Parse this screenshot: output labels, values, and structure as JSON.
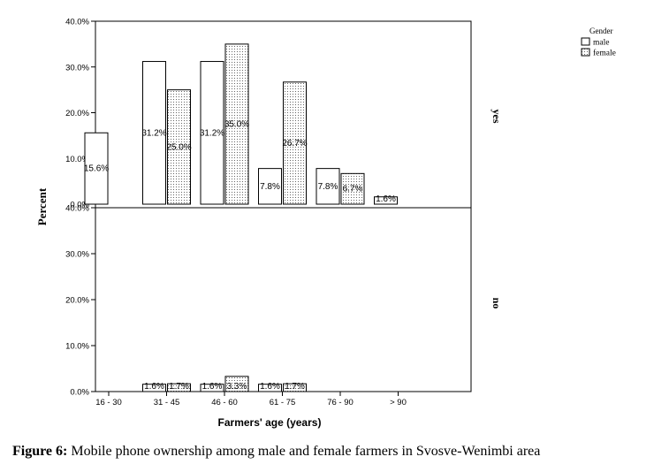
{
  "chart_data": {
    "type": "bar",
    "ylabel": "Percent",
    "xlabel": "Farmers' age (years)",
    "categories": [
      "16 - 30",
      "31 - 45",
      "46 - 60",
      "61 - 75",
      "76 - 90",
      "> 90"
    ],
    "y_ticks": [
      "0.0%",
      "10.0%",
      "20.0%",
      "30.0%",
      "40.0%"
    ],
    "ylim": [
      0,
      40
    ],
    "legend": {
      "title": "Gender",
      "position": "top-right"
    },
    "panels": [
      {
        "label": "yes",
        "series": [
          {
            "name": "male",
            "values": [
              15.6,
              31.2,
              31.2,
              7.8,
              7.8,
              1.6
            ],
            "labels": [
              "15.6%",
              "31.2%",
              "31.2%",
              "7.8%",
              "7.8%",
              "1.6%"
            ]
          },
          {
            "name": "female",
            "values": [
              null,
              25.0,
              35.0,
              26.7,
              6.7,
              null
            ],
            "labels": [
              null,
              "25.0%",
              "35.0%",
              "26.7%",
              "6.7%",
              null
            ]
          }
        ]
      },
      {
        "label": "no",
        "series": [
          {
            "name": "male",
            "values": [
              null,
              1.6,
              1.6,
              1.6,
              null,
              null
            ],
            "labels": [
              null,
              "1.6%",
              "1.6%",
              "1.6%",
              null,
              null
            ]
          },
          {
            "name": "female",
            "values": [
              null,
              1.7,
              3.3,
              1.7,
              null,
              null
            ],
            "labels": [
              null,
              "1.7%",
              "3.3%",
              "1.7%",
              null,
              null
            ]
          }
        ]
      }
    ]
  },
  "caption": {
    "prefix": "Figure 6:",
    "text": " Mobile phone ownership among male and female farmers in Svosve-Wenimbi area"
  }
}
